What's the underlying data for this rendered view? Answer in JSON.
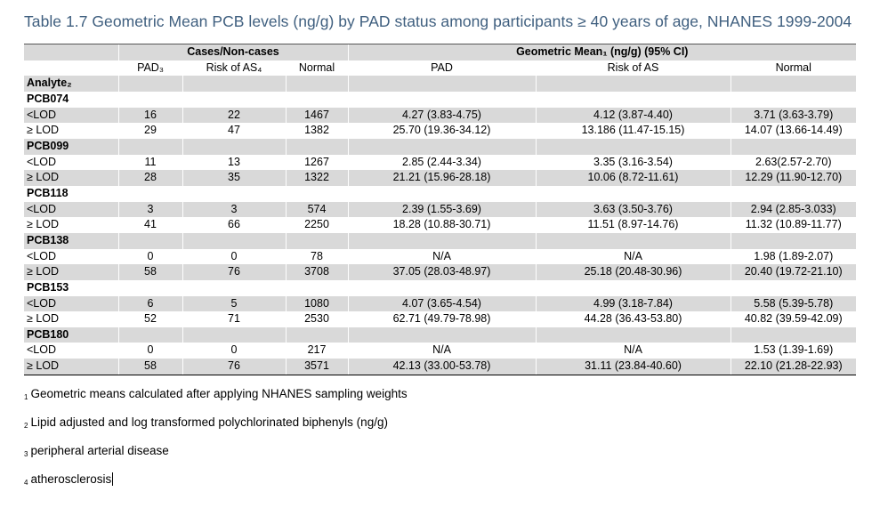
{
  "title": "Table 1.7 Geometric Mean PCB levels (ng/g) by PAD status among participants ≥ 40 years of age, NHANES 1999-2004",
  "group_headers": {
    "cases": "Cases/Non-cases",
    "geo_mean": "Geometric Mean₁ (ng/g) (95% CI)"
  },
  "col_headers": [
    "",
    "PAD₃",
    "Risk of AS₄",
    "Normal",
    "PAD",
    "Risk of AS",
    "Normal"
  ],
  "analyte_label": "Analyte₂",
  "sections": [
    {
      "name": "PCB074",
      "rows": [
        [
          "<LOD",
          "16",
          "22",
          "1467",
          "4.27 (3.83-4.75)",
          "4.12 (3.87-4.40)",
          "3.71 (3.63-3.79)"
        ],
        [
          "≥ LOD",
          "29",
          "47",
          "1382",
          "25.70 (19.36-34.12)",
          "13.186 (11.47-15.15)",
          "14.07 (13.66-14.49)"
        ]
      ]
    },
    {
      "name": "PCB099",
      "rows": [
        [
          "<LOD",
          "11",
          "13",
          "1267",
          "2.85 (2.44-3.34)",
          "3.35 (3.16-3.54)",
          "2.63(2.57-2.70)"
        ],
        [
          "≥ LOD",
          "28",
          "35",
          "1322",
          "21.21 (15.96-28.18)",
          "10.06 (8.72-11.61)",
          "12.29 (11.90-12.70)"
        ]
      ]
    },
    {
      "name": "PCB118",
      "rows": [
        [
          "<LOD",
          "3",
          "3",
          "574",
          "2.39 (1.55-3.69)",
          "3.63 (3.50-3.76)",
          "2.94 (2.85-3.033)"
        ],
        [
          "≥ LOD",
          "41",
          "66",
          "2250",
          "18.28 (10.88-30.71)",
          "11.51 (8.97-14.76)",
          "11.32 (10.89-11.77)"
        ]
      ]
    },
    {
      "name": "PCB138",
      "rows": [
        [
          "<LOD",
          "0",
          "0",
          "78",
          "N/A",
          "N/A",
          "1.98 (1.89-2.07)"
        ],
        [
          "≥ LOD",
          "58",
          "76",
          "3708",
          "37.05 (28.03-48.97)",
          "25.18 (20.48-30.96)",
          "20.40 (19.72-21.10)"
        ]
      ]
    },
    {
      "name": "PCB153",
      "rows": [
        [
          "<LOD",
          "6",
          "5",
          "1080",
          "4.07 (3.65-4.54)",
          "4.99 (3.18-7.84)",
          "5.58 (5.39-5.78)"
        ],
        [
          "≥ LOD",
          "52",
          "71",
          "2530",
          "62.71 (49.79-78.98)",
          "44.28 (36.43-53.80)",
          "40.82 (39.59-42.09)"
        ]
      ]
    },
    {
      "name": "PCB180",
      "rows": [
        [
          "<LOD",
          "0",
          "0",
          "217",
          "N/A",
          "N/A",
          "1.53 (1.39-1.69)"
        ],
        [
          "≥ LOD",
          "58",
          "76",
          "3571",
          "42.13 (33.00-53.78)",
          "31.11 (23.84-40.60)",
          "22.10 (21.28-22.93)"
        ]
      ]
    }
  ],
  "footnotes": [
    {
      "mark": "1",
      "text": "Geometric means calculated after applying NHANES sampling weights"
    },
    {
      "mark": "2",
      "text": "Lipid adjusted and log transformed polychlorinated biphenyls (ng/g)"
    },
    {
      "mark": "3",
      "text": "peripheral arterial disease"
    },
    {
      "mark": "4",
      "text": "atherosclerosis"
    }
  ]
}
